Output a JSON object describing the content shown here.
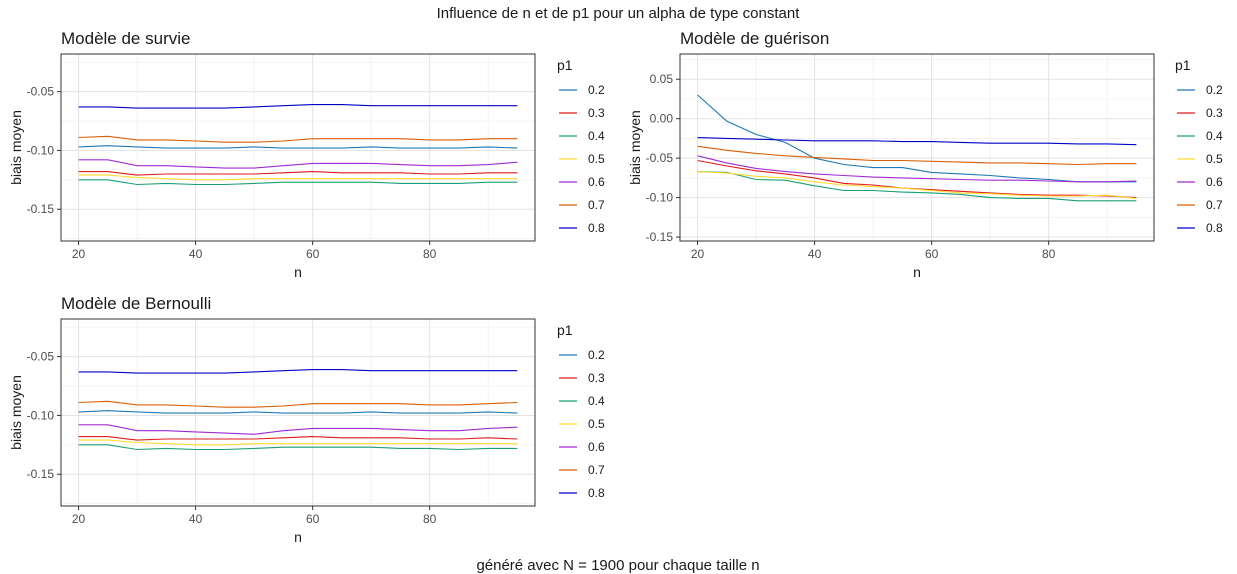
{
  "figure": {
    "title": "Influence de n et de p1 pour un alpha de type constant",
    "caption": "généré avec N = 1900 pour chaque taille n"
  },
  "series_colors": {
    "0.2": "#1f78b4",
    "0.3": "#e31a1c",
    "0.4": "#1b9e77",
    "0.5": "#ffd92f",
    "0.6": "#a02bd6",
    "0.7": "#d95f02",
    "0.8": "#0000cc"
  },
  "chart_data": [
    {
      "type": "line",
      "title": "Modèle de survie",
      "xlabel": "n",
      "ylabel": "biais moyen",
      "legend_title": "p1",
      "legend_position": "right",
      "grid": true,
      "xlim": [
        17,
        98
      ],
      "ylim": [
        -0.177,
        -0.018
      ],
      "xticks": [
        20,
        40,
        60,
        80
      ],
      "yticks": [
        -0.15,
        -0.1,
        -0.05
      ],
      "ytick_labels": [
        "-0.15",
        "-0.10",
        "-0.05"
      ],
      "x": [
        20,
        25,
        30,
        35,
        40,
        45,
        50,
        55,
        60,
        65,
        70,
        75,
        80,
        85,
        90,
        95
      ],
      "series": [
        {
          "name": "0.2",
          "values": [
            -0.097,
            -0.096,
            -0.097,
            -0.098,
            -0.098,
            -0.098,
            -0.097,
            -0.098,
            -0.098,
            -0.098,
            -0.097,
            -0.098,
            -0.098,
            -0.098,
            -0.097,
            -0.098
          ]
        },
        {
          "name": "0.3",
          "values": [
            -0.118,
            -0.118,
            -0.121,
            -0.12,
            -0.12,
            -0.12,
            -0.12,
            -0.119,
            -0.118,
            -0.119,
            -0.119,
            -0.119,
            -0.12,
            -0.12,
            -0.119,
            -0.119
          ]
        },
        {
          "name": "0.4",
          "values": [
            -0.125,
            -0.125,
            -0.129,
            -0.128,
            -0.129,
            -0.129,
            -0.128,
            -0.127,
            -0.127,
            -0.127,
            -0.127,
            -0.128,
            -0.128,
            -0.128,
            -0.127,
            -0.127
          ]
        },
        {
          "name": "0.5",
          "values": [
            -0.121,
            -0.121,
            -0.123,
            -0.124,
            -0.125,
            -0.125,
            -0.124,
            -0.124,
            -0.124,
            -0.124,
            -0.124,
            -0.124,
            -0.124,
            -0.124,
            -0.124,
            -0.124
          ]
        },
        {
          "name": "0.6",
          "values": [
            -0.108,
            -0.108,
            -0.113,
            -0.113,
            -0.114,
            -0.115,
            -0.115,
            -0.113,
            -0.111,
            -0.111,
            -0.111,
            -0.112,
            -0.113,
            -0.113,
            -0.112,
            -0.11
          ]
        },
        {
          "name": "0.7",
          "values": [
            -0.089,
            -0.088,
            -0.091,
            -0.091,
            -0.092,
            -0.093,
            -0.093,
            -0.092,
            -0.09,
            -0.09,
            -0.09,
            -0.09,
            -0.091,
            -0.091,
            -0.09,
            -0.09
          ]
        },
        {
          "name": "0.8",
          "values": [
            -0.063,
            -0.063,
            -0.064,
            -0.064,
            -0.064,
            -0.064,
            -0.063,
            -0.062,
            -0.061,
            -0.061,
            -0.062,
            -0.062,
            -0.062,
            -0.062,
            -0.062,
            -0.062
          ]
        }
      ]
    },
    {
      "type": "line",
      "title": "Modèle de guérison",
      "xlabel": "n",
      "ylabel": "biais moyen",
      "legend_title": "p1",
      "legend_position": "right",
      "grid": true,
      "xlim": [
        17,
        98
      ],
      "ylim": [
        -0.155,
        0.082
      ],
      "xticks": [
        20,
        40,
        60,
        80
      ],
      "yticks": [
        -0.15,
        -0.1,
        -0.05,
        0.0,
        0.05
      ],
      "ytick_labels": [
        "-0.15",
        "-0.10",
        "-0.05",
        "0.00",
        "0.05"
      ],
      "x": [
        20,
        25,
        30,
        35,
        40,
        45,
        50,
        55,
        60,
        65,
        70,
        75,
        80,
        85,
        90,
        95
      ],
      "series": [
        {
          "name": "0.2",
          "values": [
            0.03,
            -0.003,
            -0.02,
            -0.03,
            -0.05,
            -0.058,
            -0.062,
            -0.062,
            -0.068,
            -0.07,
            -0.072,
            -0.075,
            -0.077,
            -0.08,
            -0.08,
            -0.08
          ]
        },
        {
          "name": "0.3",
          "values": [
            -0.053,
            -0.06,
            -0.066,
            -0.07,
            -0.075,
            -0.082,
            -0.084,
            -0.088,
            -0.09,
            -0.092,
            -0.094,
            -0.096,
            -0.097,
            -0.097,
            -0.098,
            -0.1
          ]
        },
        {
          "name": "0.4",
          "values": [
            -0.067,
            -0.068,
            -0.077,
            -0.078,
            -0.085,
            -0.091,
            -0.091,
            -0.093,
            -0.094,
            -0.096,
            -0.1,
            -0.101,
            -0.101,
            -0.104,
            -0.104,
            -0.104
          ]
        },
        {
          "name": "0.5",
          "values": [
            -0.067,
            -0.069,
            -0.073,
            -0.075,
            -0.08,
            -0.084,
            -0.086,
            -0.088,
            -0.091,
            -0.094,
            -0.095,
            -0.097,
            -0.098,
            -0.098,
            -0.097,
            -0.101
          ]
        },
        {
          "name": "0.6",
          "values": [
            -0.047,
            -0.056,
            -0.063,
            -0.067,
            -0.07,
            -0.072,
            -0.074,
            -0.075,
            -0.076,
            -0.077,
            -0.078,
            -0.078,
            -0.079,
            -0.08,
            -0.08,
            -0.079
          ]
        },
        {
          "name": "0.7",
          "values": [
            -0.035,
            -0.04,
            -0.044,
            -0.047,
            -0.049,
            -0.051,
            -0.053,
            -0.053,
            -0.054,
            -0.055,
            -0.056,
            -0.056,
            -0.057,
            -0.058,
            -0.057,
            -0.057
          ]
        },
        {
          "name": "0.8",
          "values": [
            -0.024,
            -0.025,
            -0.026,
            -0.027,
            -0.028,
            -0.028,
            -0.028,
            -0.029,
            -0.029,
            -0.03,
            -0.031,
            -0.031,
            -0.031,
            -0.032,
            -0.032,
            -0.033
          ]
        }
      ]
    },
    {
      "type": "line",
      "title": "Modèle de Bernoulli",
      "xlabel": "n",
      "ylabel": "biais moyen",
      "legend_title": "p1",
      "legend_position": "right",
      "grid": true,
      "xlim": [
        17,
        98
      ],
      "ylim": [
        -0.177,
        -0.018
      ],
      "xticks": [
        20,
        40,
        60,
        80
      ],
      "yticks": [
        -0.15,
        -0.1,
        -0.05
      ],
      "ytick_labels": [
        "-0.15",
        "-0.10",
        "-0.05"
      ],
      "x": [
        20,
        25,
        30,
        35,
        40,
        45,
        50,
        55,
        60,
        65,
        70,
        75,
        80,
        85,
        90,
        95
      ],
      "series": [
        {
          "name": "0.2",
          "values": [
            -0.097,
            -0.096,
            -0.097,
            -0.098,
            -0.098,
            -0.098,
            -0.097,
            -0.098,
            -0.098,
            -0.098,
            -0.097,
            -0.098,
            -0.098,
            -0.098,
            -0.097,
            -0.098
          ]
        },
        {
          "name": "0.3",
          "values": [
            -0.118,
            -0.118,
            -0.121,
            -0.12,
            -0.12,
            -0.12,
            -0.12,
            -0.119,
            -0.118,
            -0.119,
            -0.119,
            -0.119,
            -0.12,
            -0.12,
            -0.119,
            -0.12
          ]
        },
        {
          "name": "0.4",
          "values": [
            -0.125,
            -0.125,
            -0.129,
            -0.128,
            -0.129,
            -0.129,
            -0.128,
            -0.127,
            -0.127,
            -0.127,
            -0.127,
            -0.128,
            -0.128,
            -0.129,
            -0.128,
            -0.128
          ]
        },
        {
          "name": "0.5",
          "values": [
            -0.121,
            -0.121,
            -0.123,
            -0.124,
            -0.125,
            -0.125,
            -0.124,
            -0.124,
            -0.124,
            -0.124,
            -0.124,
            -0.124,
            -0.124,
            -0.124,
            -0.124,
            -0.124
          ]
        },
        {
          "name": "0.6",
          "values": [
            -0.108,
            -0.108,
            -0.113,
            -0.113,
            -0.114,
            -0.115,
            -0.116,
            -0.113,
            -0.111,
            -0.111,
            -0.111,
            -0.112,
            -0.113,
            -0.113,
            -0.111,
            -0.11
          ]
        },
        {
          "name": "0.7",
          "values": [
            -0.089,
            -0.088,
            -0.091,
            -0.091,
            -0.092,
            -0.093,
            -0.093,
            -0.092,
            -0.09,
            -0.09,
            -0.09,
            -0.09,
            -0.091,
            -0.091,
            -0.09,
            -0.089
          ]
        },
        {
          "name": "0.8",
          "values": [
            -0.063,
            -0.063,
            -0.064,
            -0.064,
            -0.064,
            -0.064,
            -0.063,
            -0.062,
            -0.061,
            -0.061,
            -0.062,
            -0.062,
            -0.062,
            -0.062,
            -0.062,
            -0.062
          ]
        }
      ]
    }
  ]
}
